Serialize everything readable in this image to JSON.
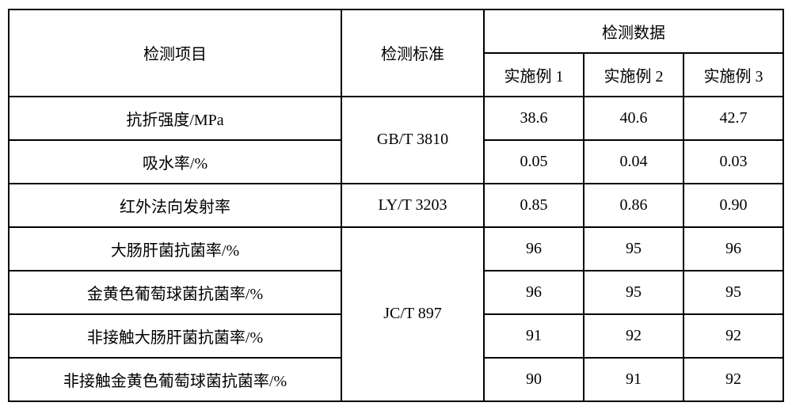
{
  "table": {
    "headers": {
      "item": "检测项目",
      "standard": "检测标准",
      "data_group": "检测数据",
      "example1": "实施例 1",
      "example2": "实施例 2",
      "example3": "实施例 3"
    },
    "rows": [
      {
        "item": "抗折强度/MPa",
        "standard": "GB/T 3810",
        "standard_rowspan": 2,
        "ex1": "38.6",
        "ex2": "40.6",
        "ex3": "42.7"
      },
      {
        "item": "吸水率/%",
        "ex1": "0.05",
        "ex2": "0.04",
        "ex3": "0.03"
      },
      {
        "item": "红外法向发射率",
        "standard": "LY/T 3203",
        "standard_rowspan": 1,
        "ex1": "0.85",
        "ex2": "0.86",
        "ex3": "0.90"
      },
      {
        "item": "大肠肝菌抗菌率/%",
        "standard": "JC/T 897",
        "standard_rowspan": 4,
        "ex1": "96",
        "ex2": "95",
        "ex3": "96"
      },
      {
        "item": "金黄色葡萄球菌抗菌率/%",
        "ex1": "96",
        "ex2": "95",
        "ex3": "95"
      },
      {
        "item": "非接触大肠肝菌抗菌率/%",
        "ex1": "91",
        "ex2": "92",
        "ex3": "92"
      },
      {
        "item": "非接触金黄色葡萄球菌抗菌率/%",
        "ex1": "90",
        "ex2": "91",
        "ex3": "92"
      }
    ],
    "styling": {
      "border_color": "#000000",
      "border_width": 2,
      "background_color": "#ffffff",
      "text_color": "#000000",
      "font_size": 20,
      "font_family": "SimSun"
    }
  }
}
